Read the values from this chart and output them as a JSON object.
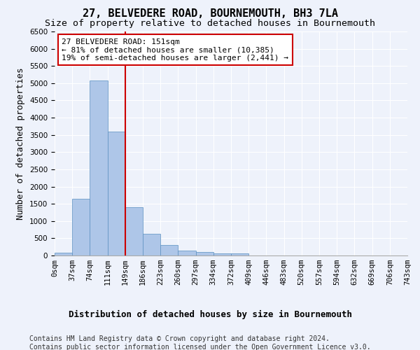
{
  "title": "27, BELVEDERE ROAD, BOURNEMOUTH, BH3 7LA",
  "subtitle": "Size of property relative to detached houses in Bournemouth",
  "xlabel": "Distribution of detached houses by size in Bournemouth",
  "ylabel": "Number of detached properties",
  "footer_line1": "Contains HM Land Registry data © Crown copyright and database right 2024.",
  "footer_line2": "Contains public sector information licensed under the Open Government Licence v3.0.",
  "bar_values": [
    75,
    1650,
    5080,
    3600,
    1400,
    620,
    300,
    150,
    100,
    60,
    60,
    0,
    0,
    0,
    0,
    0,
    0,
    0,
    0,
    0
  ],
  "bin_labels": [
    "0sqm",
    "37sqm",
    "74sqm",
    "111sqm",
    "149sqm",
    "186sqm",
    "223sqm",
    "260sqm",
    "297sqm",
    "334sqm",
    "372sqm",
    "409sqm",
    "446sqm",
    "483sqm",
    "520sqm",
    "557sqm",
    "594sqm",
    "632sqm",
    "669sqm",
    "706sqm",
    "743sqm"
  ],
  "bar_color": "#aec6e8",
  "bar_edge_color": "#5a8fc0",
  "vline_color": "#cc0000",
  "vline_position": 3.5,
  "annotation_text": "27 BELVEDERE ROAD: 151sqm\n← 81% of detached houses are smaller (10,385)\n19% of semi-detached houses are larger (2,441) →",
  "annotation_box_color": "#ffffff",
  "annotation_box_edge": "#cc0000",
  "ylim": [
    0,
    6500
  ],
  "yticks": [
    0,
    500,
    1000,
    1500,
    2000,
    2500,
    3000,
    3500,
    4000,
    4500,
    5000,
    5500,
    6000,
    6500
  ],
  "bg_color": "#eef2fb",
  "plot_bg_color": "#eef2fb",
  "grid_color": "#ffffff",
  "title_fontsize": 11,
  "subtitle_fontsize": 9.5,
  "label_fontsize": 9,
  "tick_fontsize": 7.5,
  "footer_fontsize": 7,
  "ann_fontsize": 8
}
